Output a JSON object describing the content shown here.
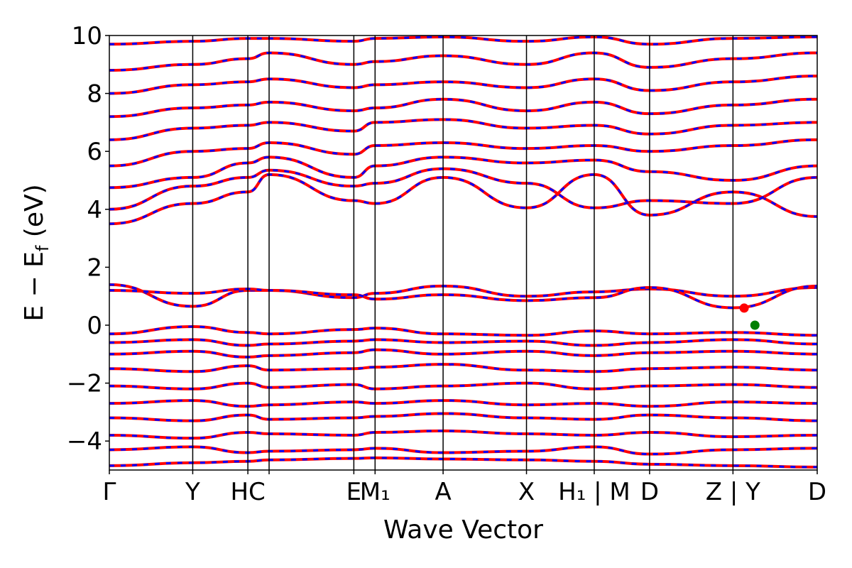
{
  "chart_data": {
    "type": "line",
    "title": "",
    "xlabel": "Wave Vector",
    "ylabel": "E − E",
    "ylabel_subscript": "f",
    "ylabel_unit": " (eV)",
    "ylim": [
      -5,
      10
    ],
    "grid": false,
    "y_ticks": [
      -4,
      -2,
      0,
      2,
      4,
      6,
      8,
      10
    ],
    "y_tick_labels": [
      "−4",
      "−2",
      "0",
      "2",
      "4",
      "6",
      "8",
      "10"
    ],
    "kpath": {
      "positions": [
        0,
        0.1178,
        0.1957,
        0.2257,
        0.3454,
        0.3754,
        0.4715,
        0.5893,
        0.685,
        0.7632,
        0.881,
        1.0
      ],
      "labels": [
        "Γ",
        "Y",
        "HC",
        "",
        "E",
        "M₁",
        "A",
        "X",
        "H₁ | M",
        "D",
        "Z | Y",
        "D"
      ]
    },
    "series_colors": {
      "spin_up": "#ff0000",
      "spin_down": "#0000ff"
    },
    "bands": [
      {
        "k": [
          0,
          0.1178,
          0.1957,
          0.2257,
          0.3454,
          0.3754,
          0.4715,
          0.5893,
          0.685,
          0.7632,
          0.881,
          1.0
        ],
        "e": [
          -4.85,
          -4.75,
          -4.7,
          -4.65,
          -4.6,
          -4.58,
          -4.62,
          -4.65,
          -4.7,
          -4.8,
          -4.85,
          -4.9
        ]
      },
      {
        "k": [
          0,
          0.1178,
          0.1957,
          0.2257,
          0.3454,
          0.3754,
          0.4715,
          0.5893,
          0.685,
          0.7632,
          0.881,
          1.0
        ],
        "e": [
          -4.3,
          -4.2,
          -4.4,
          -4.35,
          -4.3,
          -4.25,
          -4.4,
          -4.35,
          -4.2,
          -4.45,
          -4.3,
          -4.25
        ]
      },
      {
        "k": [
          0,
          0.1178,
          0.1957,
          0.2257,
          0.3454,
          0.3754,
          0.4715,
          0.5893,
          0.685,
          0.7632,
          0.881,
          1.0
        ],
        "e": [
          -3.8,
          -3.9,
          -3.7,
          -3.75,
          -3.8,
          -3.7,
          -3.65,
          -3.75,
          -3.8,
          -3.7,
          -3.85,
          -3.8
        ]
      },
      {
        "k": [
          0,
          0.1178,
          0.1957,
          0.2257,
          0.3454,
          0.3754,
          0.4715,
          0.5893,
          0.685,
          0.7632,
          0.881,
          1.0
        ],
        "e": [
          -3.2,
          -3.3,
          -3.1,
          -3.25,
          -3.2,
          -3.15,
          -3.05,
          -3.2,
          -3.25,
          -3.1,
          -3.2,
          -3.3
        ]
      },
      {
        "k": [
          0,
          0.1178,
          0.1957,
          0.2257,
          0.3454,
          0.3754,
          0.4715,
          0.5893,
          0.685,
          0.7632,
          0.881,
          1.0
        ],
        "e": [
          -2.7,
          -2.6,
          -2.8,
          -2.75,
          -2.65,
          -2.7,
          -2.6,
          -2.75,
          -2.7,
          -2.8,
          -2.65,
          -2.7
        ]
      },
      {
        "k": [
          0,
          0.1178,
          0.1957,
          0.2257,
          0.3454,
          0.3754,
          0.4715,
          0.5893,
          0.685,
          0.7632,
          0.881,
          1.0
        ],
        "e": [
          -2.1,
          -2.2,
          -2.0,
          -2.15,
          -2.05,
          -2.2,
          -2.1,
          -2.0,
          -2.2,
          -2.1,
          -2.05,
          -2.15
        ]
      },
      {
        "k": [
          0,
          0.1178,
          0.1957,
          0.2257,
          0.3454,
          0.3754,
          0.4715,
          0.5893,
          0.685,
          0.7632,
          0.881,
          1.0
        ],
        "e": [
          -1.5,
          -1.6,
          -1.4,
          -1.55,
          -1.5,
          -1.45,
          -1.35,
          -1.55,
          -1.6,
          -1.5,
          -1.45,
          -1.55
        ]
      },
      {
        "k": [
          0,
          0.1178,
          0.1957,
          0.2257,
          0.3454,
          0.3754,
          0.4715,
          0.5893,
          0.685,
          0.7632,
          0.881,
          1.0
        ],
        "e": [
          -1.0,
          -0.9,
          -1.1,
          -1.05,
          -0.95,
          -0.85,
          -1.0,
          -0.9,
          -1.05,
          -0.95,
          -0.9,
          -1.0
        ]
      },
      {
        "k": [
          0,
          0.1178,
          0.1957,
          0.2257,
          0.3454,
          0.3754,
          0.4715,
          0.5893,
          0.685,
          0.7632,
          0.881,
          1.0
        ],
        "e": [
          -0.6,
          -0.5,
          -0.7,
          -0.65,
          -0.55,
          -0.5,
          -0.6,
          -0.55,
          -0.7,
          -0.6,
          -0.5,
          -0.65
        ]
      },
      {
        "k": [
          0,
          0.1178,
          0.1957,
          0.2257,
          0.3454,
          0.3754,
          0.4715,
          0.5893,
          0.685,
          0.7632,
          0.881,
          1.0
        ],
        "e": [
          -0.3,
          -0.05,
          -0.25,
          -0.3,
          -0.15,
          -0.1,
          -0.3,
          -0.35,
          -0.2,
          -0.3,
          -0.25,
          -0.35
        ]
      },
      {
        "k": [
          0,
          0.1178,
          0.1957,
          0.2257,
          0.3454,
          0.3754,
          0.4715,
          0.5893,
          0.685,
          0.7632,
          0.881,
          1.0
        ],
        "e": [
          1.4,
          0.65,
          1.2,
          1.2,
          0.95,
          1.1,
          1.35,
          1.0,
          1.15,
          1.25,
          1.0,
          1.3
        ]
      },
      {
        "k": [
          0,
          0.1178,
          0.1957,
          0.2257,
          0.3454,
          0.3754,
          0.4715,
          0.5893,
          0.685,
          0.7632,
          0.881,
          1.0
        ],
        "e": [
          1.2,
          1.1,
          1.25,
          1.2,
          1.05,
          0.9,
          1.05,
          0.85,
          0.95,
          1.3,
          0.6,
          1.35
        ]
      },
      {
        "k": [
          0,
          0.1178,
          0.1957,
          0.2257,
          0.3454,
          0.3754,
          0.4715,
          0.5893,
          0.685,
          0.7632,
          0.881,
          1.0
        ],
        "e": [
          3.5,
          4.2,
          4.6,
          5.2,
          4.3,
          4.2,
          5.1,
          4.05,
          5.2,
          3.8,
          4.6,
          3.75
        ]
      },
      {
        "k": [
          0,
          0.1178,
          0.1957,
          0.2257,
          0.3454,
          0.3754,
          0.4715,
          0.5893,
          0.685,
          0.7632,
          0.881,
          1.0
        ],
        "e": [
          4.0,
          4.8,
          5.1,
          5.35,
          4.8,
          4.9,
          5.4,
          4.9,
          4.05,
          4.3,
          4.2,
          5.1
        ]
      },
      {
        "k": [
          0,
          0.1178,
          0.1957,
          0.2257,
          0.3454,
          0.3754,
          0.4715,
          0.5893,
          0.685,
          0.7632,
          0.881,
          1.0
        ],
        "e": [
          4.75,
          5.1,
          5.6,
          5.8,
          5.1,
          5.5,
          5.8,
          5.6,
          5.7,
          5.3,
          5.0,
          5.5
        ]
      },
      {
        "k": [
          0,
          0.1178,
          0.1957,
          0.2257,
          0.3454,
          0.3754,
          0.4715,
          0.5893,
          0.685,
          0.7632,
          0.881,
          1.0
        ],
        "e": [
          5.5,
          6.0,
          6.1,
          6.3,
          5.9,
          6.2,
          6.3,
          6.1,
          6.2,
          6.0,
          6.2,
          6.4
        ]
      },
      {
        "k": [
          0,
          0.1178,
          0.1957,
          0.2257,
          0.3454,
          0.3754,
          0.4715,
          0.5893,
          0.685,
          0.7632,
          0.881,
          1.0
        ],
        "e": [
          6.4,
          6.8,
          6.9,
          7.0,
          6.7,
          7.0,
          7.1,
          6.8,
          6.9,
          6.6,
          6.9,
          7.0
        ]
      },
      {
        "k": [
          0,
          0.1178,
          0.1957,
          0.2257,
          0.3454,
          0.3754,
          0.4715,
          0.5893,
          0.685,
          0.7632,
          0.881,
          1.0
        ],
        "e": [
          7.2,
          7.5,
          7.6,
          7.7,
          7.4,
          7.5,
          7.8,
          7.4,
          7.7,
          7.3,
          7.6,
          7.8
        ]
      },
      {
        "k": [
          0,
          0.1178,
          0.1957,
          0.2257,
          0.3454,
          0.3754,
          0.4715,
          0.5893,
          0.685,
          0.7632,
          0.881,
          1.0
        ],
        "e": [
          8.0,
          8.3,
          8.4,
          8.5,
          8.2,
          8.3,
          8.4,
          8.2,
          8.5,
          8.1,
          8.4,
          8.6
        ]
      },
      {
        "k": [
          0,
          0.1178,
          0.1957,
          0.2257,
          0.3454,
          0.3754,
          0.4715,
          0.5893,
          0.685,
          0.7632,
          0.881,
          1.0
        ],
        "e": [
          8.8,
          9.0,
          9.2,
          9.4,
          9.0,
          9.1,
          9.3,
          9.0,
          9.4,
          8.9,
          9.2,
          9.4
        ]
      },
      {
        "k": [
          0,
          0.1178,
          0.1957,
          0.2257,
          0.3454,
          0.3754,
          0.4715,
          0.5893,
          0.685,
          0.7632,
          0.881,
          1.0
        ],
        "e": [
          9.7,
          9.8,
          9.9,
          9.9,
          9.8,
          9.9,
          9.95,
          9.8,
          9.95,
          9.7,
          9.9,
          9.95
        ]
      }
    ],
    "markers": [
      {
        "x": 0.8968,
        "y": 0.59,
        "color": "#ff0000"
      },
      {
        "x": 0.912,
        "y": 0.0,
        "color": "#008000"
      }
    ]
  }
}
